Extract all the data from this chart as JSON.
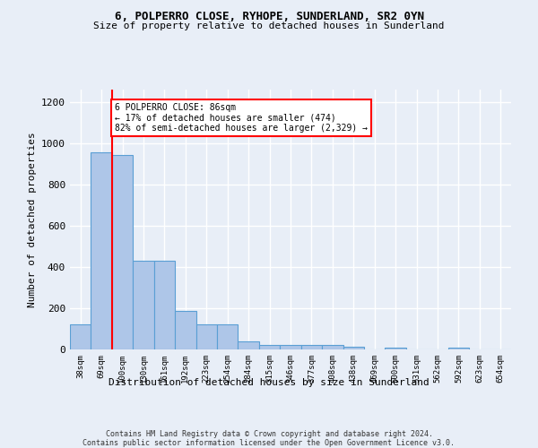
{
  "title1": "6, POLPERRO CLOSE, RYHOPE, SUNDERLAND, SR2 0YN",
  "title2": "Size of property relative to detached houses in Sunderland",
  "xlabel": "Distribution of detached houses by size in Sunderland",
  "ylabel": "Number of detached properties",
  "categories": [
    "38sqm",
    "69sqm",
    "100sqm",
    "130sqm",
    "161sqm",
    "192sqm",
    "223sqm",
    "254sqm",
    "284sqm",
    "315sqm",
    "346sqm",
    "377sqm",
    "408sqm",
    "438sqm",
    "469sqm",
    "500sqm",
    "531sqm",
    "562sqm",
    "592sqm",
    "623sqm",
    "654sqm"
  ],
  "values": [
    120,
    955,
    945,
    430,
    430,
    185,
    120,
    120,
    40,
    20,
    20,
    20,
    20,
    15,
    0,
    10,
    0,
    0,
    10,
    0,
    0
  ],
  "bar_color": "#aec6e8",
  "bar_edge_color": "#5a9fd4",
  "ylim": [
    0,
    1260
  ],
  "yticks": [
    0,
    200,
    400,
    600,
    800,
    1000,
    1200
  ],
  "annotation_box_text": "6 POLPERRO CLOSE: 86sqm\n← 17% of detached houses are smaller (474)\n82% of semi-detached houses are larger (2,329) →",
  "annotation_box_color": "white",
  "annotation_box_edge_color": "red",
  "red_line_x": 1.5,
  "footnote": "Contains HM Land Registry data © Crown copyright and database right 2024.\nContains public sector information licensed under the Open Government Licence v3.0.",
  "bg_color": "#e8eef7",
  "grid_color": "#ffffff"
}
